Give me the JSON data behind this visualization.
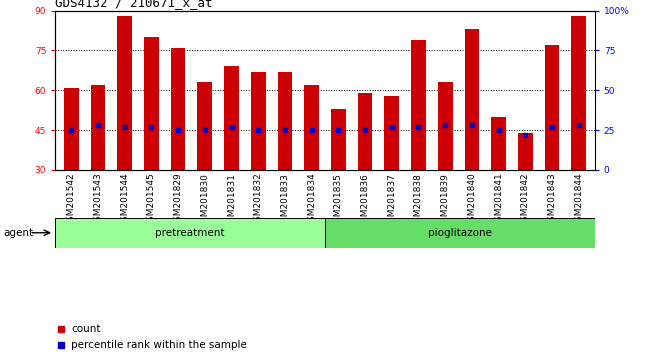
{
  "title": "GDS4132 / 210671_x_at",
  "samples": [
    "GSM201542",
    "GSM201543",
    "GSM201544",
    "GSM201545",
    "GSM201829",
    "GSM201830",
    "GSM201831",
    "GSM201832",
    "GSM201833",
    "GSM201834",
    "GSM201835",
    "GSM201836",
    "GSM201837",
    "GSM201838",
    "GSM201839",
    "GSM201840",
    "GSM201841",
    "GSM201842",
    "GSM201843",
    "GSM201844"
  ],
  "bar_values": [
    61,
    62,
    88,
    80,
    76,
    63,
    69,
    67,
    67,
    62,
    53,
    59,
    58,
    79,
    63,
    83,
    50,
    44,
    77,
    88
  ],
  "percentile_values": [
    45,
    47,
    46,
    46,
    45,
    45,
    46,
    45,
    45,
    45,
    45,
    45,
    46,
    46,
    47,
    47,
    45,
    43,
    46,
    47
  ],
  "pretreatment_count": 10,
  "pioglitazone_count": 10,
  "ylim_left": [
    30,
    90
  ],
  "ylim_right": [
    0,
    100
  ],
  "yticks_left": [
    30,
    45,
    60,
    75,
    90
  ],
  "yticks_right": [
    0,
    25,
    50,
    75,
    100
  ],
  "ytick_labels_right": [
    "0",
    "25",
    "50",
    "75",
    "100%"
  ],
  "grid_lines": [
    45,
    60,
    75
  ],
  "bar_color": "#cc0000",
  "percentile_color": "#0000cc",
  "pretreatment_color": "#99ff99",
  "pioglitazone_color": "#66dd66",
  "bg_color": "#ffffff",
  "bar_width": 0.55,
  "title_fontsize": 9,
  "tick_fontsize": 6.5,
  "label_fontsize": 7.5,
  "agent_label": "agent",
  "pretreatment_label": "pretreatment",
  "pioglitazone_label": "pioglitazone",
  "legend_count": "count",
  "legend_percentile": "percentile rank within the sample"
}
